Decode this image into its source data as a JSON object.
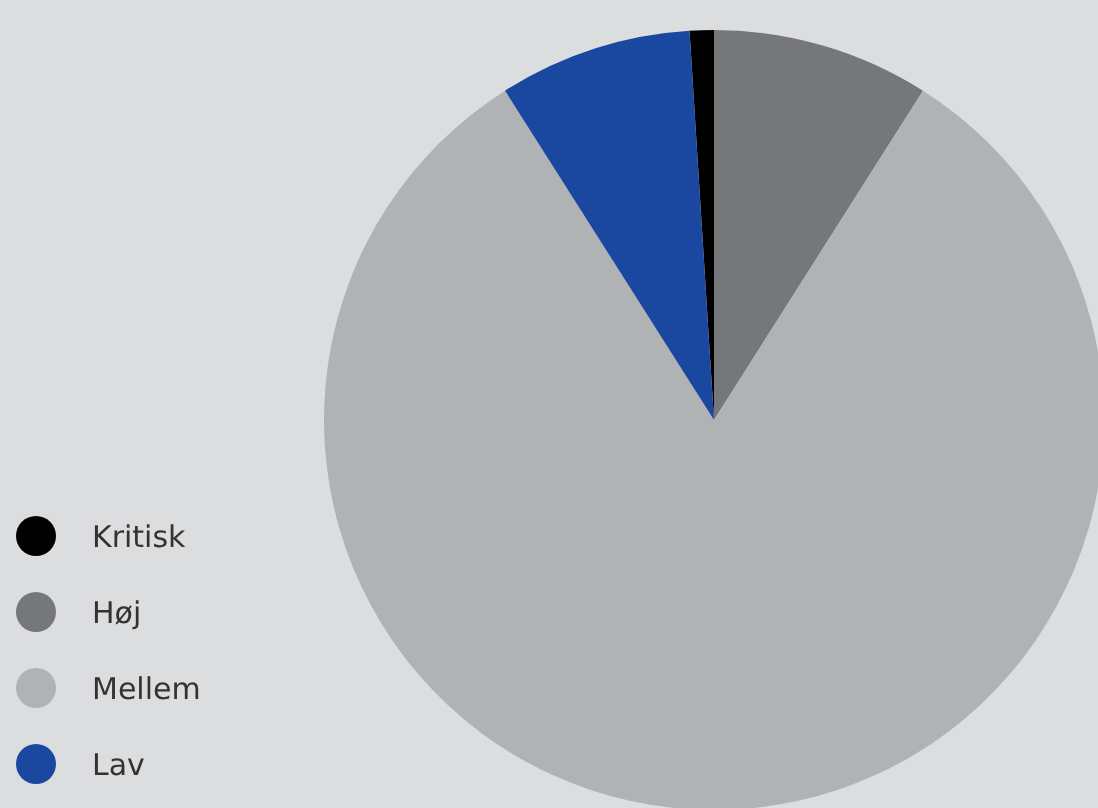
{
  "chart_data": {
    "type": "pie",
    "categories": [
      "Kritisk",
      "Høj",
      "Mellem",
      "Lav"
    ],
    "values": [
      1,
      9,
      82,
      8
    ],
    "colors": [
      "#000000",
      "#76777a",
      "#b0b2b4",
      "#1a47a0"
    ],
    "legend": "bottom left"
  }
}
